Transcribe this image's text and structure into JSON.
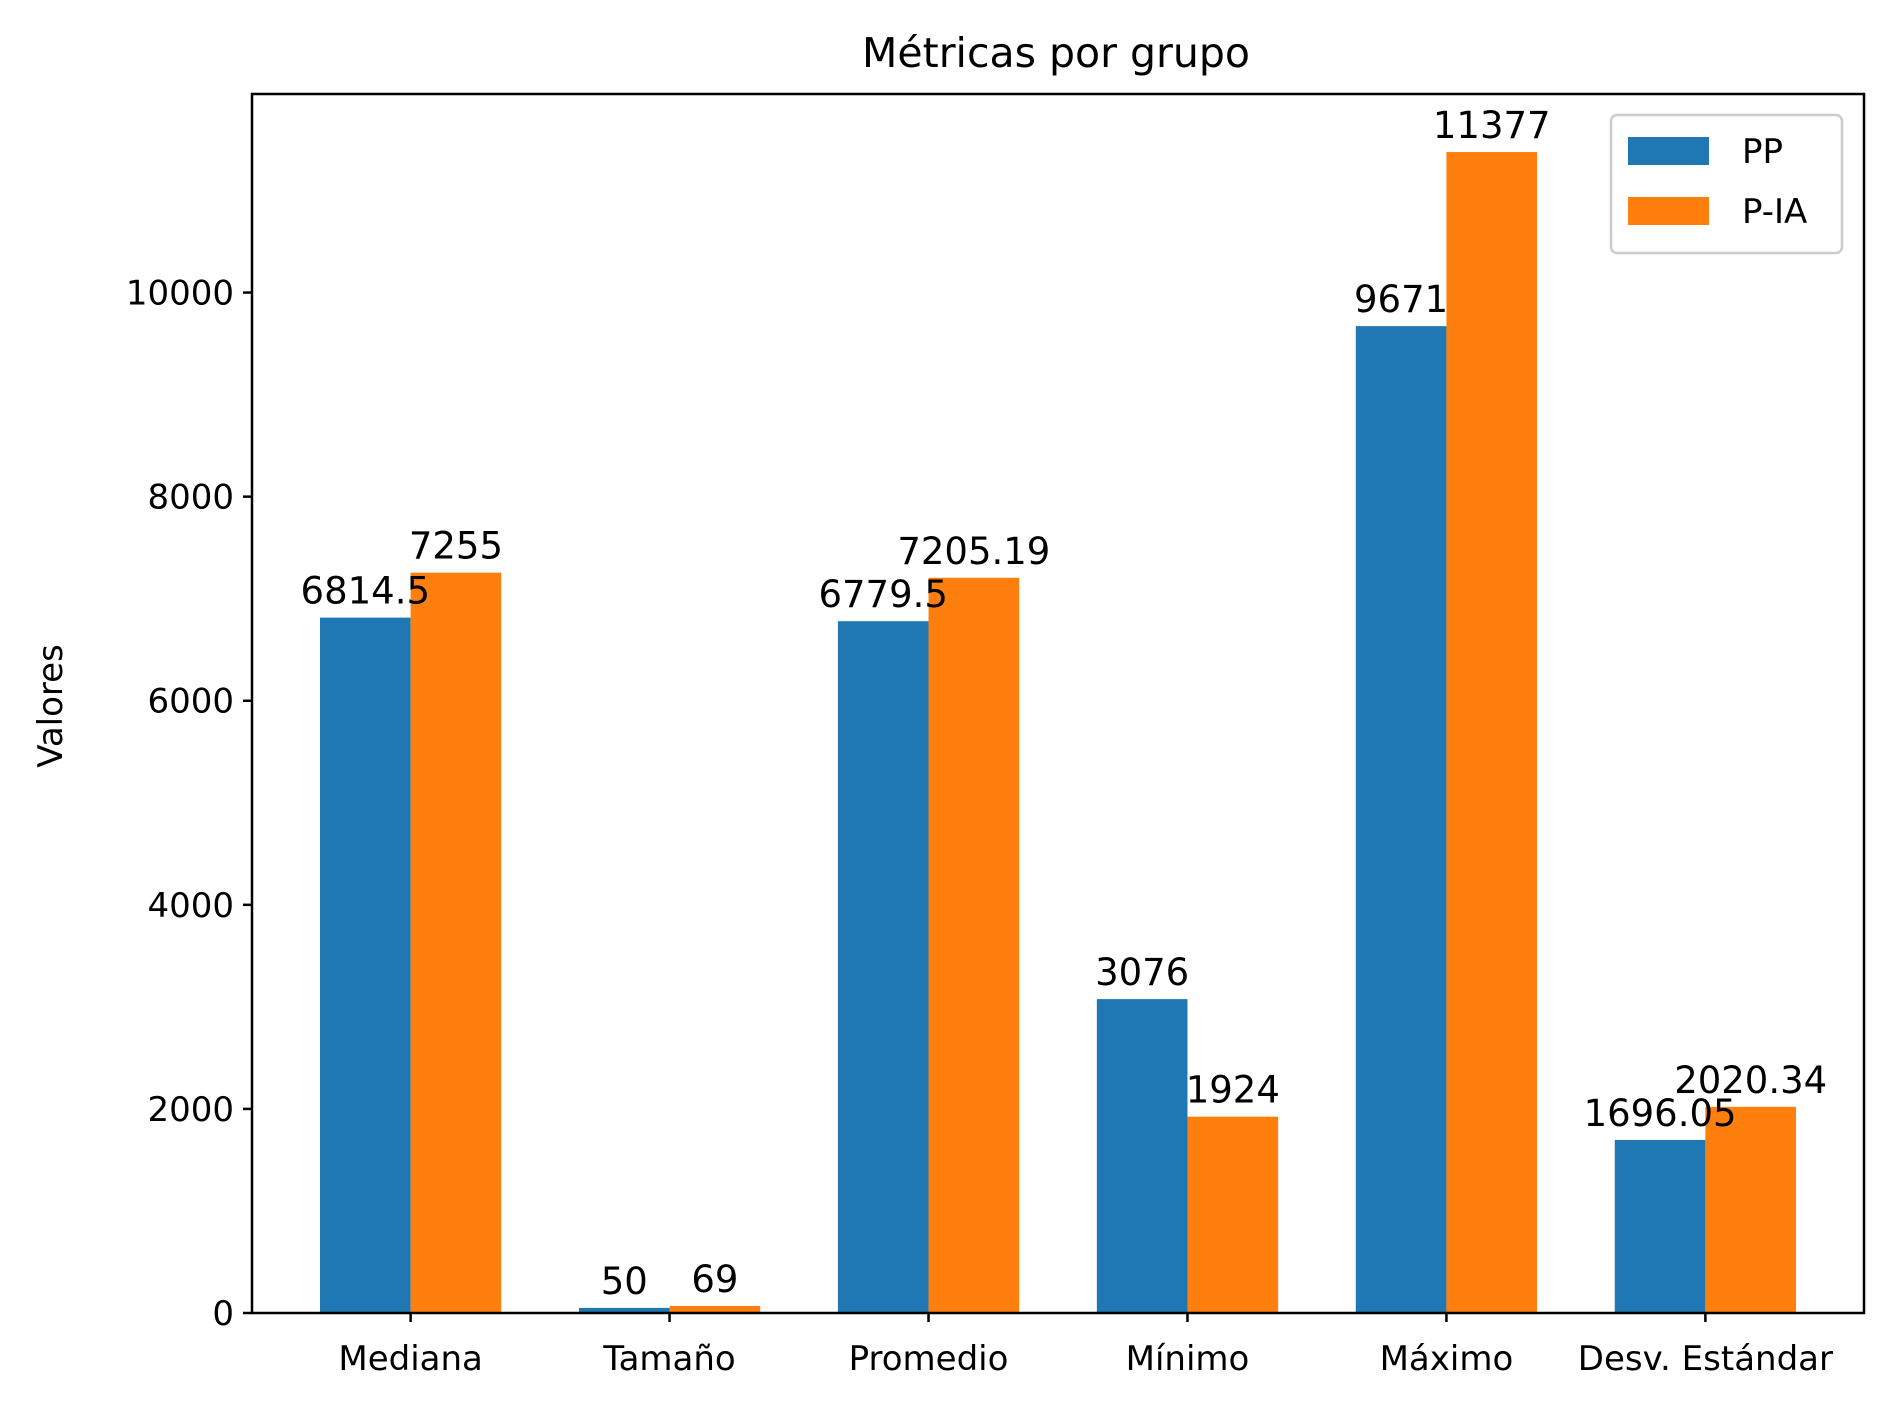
{
  "chart_data": {
    "type": "bar",
    "title": "Métricas por grupo",
    "xlabel": "",
    "ylabel": "Valores",
    "categories": [
      "Mediana",
      "Tamaño",
      "Promedio",
      "Mínimo",
      "Máximo",
      "Desv. Estándar"
    ],
    "series": [
      {
        "name": "PP",
        "color": "#1f77b4",
        "values": [
          6814.5,
          50,
          6779.5,
          3076,
          9671,
          1696.05
        ],
        "labels": [
          "6814.5",
          "50",
          "6779.5",
          "3076",
          "9671",
          "1696.05"
        ]
      },
      {
        "name": "P-IA",
        "color": "#ff7f0e",
        "values": [
          7255,
          69,
          7205.19,
          1924,
          11377,
          2020.34
        ],
        "labels": [
          "7255",
          "69",
          "7205.19",
          "1924",
          "11377",
          "2020.34"
        ]
      }
    ],
    "ylim": [
      0,
      11945.85
    ],
    "yticks": [
      0,
      2000,
      4000,
      6000,
      8000,
      10000
    ],
    "legend_position": "top-right",
    "grid": false
  }
}
